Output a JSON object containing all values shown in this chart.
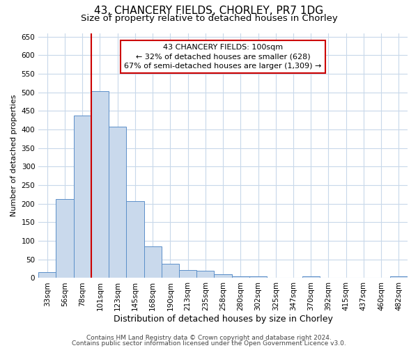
{
  "title1": "43, CHANCERY FIELDS, CHORLEY, PR7 1DG",
  "title2": "Size of property relative to detached houses in Chorley",
  "xlabel": "Distribution of detached houses by size in Chorley",
  "ylabel": "Number of detached properties",
  "footnote1": "Contains HM Land Registry data © Crown copyright and database right 2024.",
  "footnote2": "Contains public sector information licensed under the Open Government Licence v3.0.",
  "bar_labels": [
    "33sqm",
    "56sqm",
    "78sqm",
    "101sqm",
    "123sqm",
    "145sqm",
    "168sqm",
    "190sqm",
    "213sqm",
    "235sqm",
    "258sqm",
    "280sqm",
    "302sqm",
    "325sqm",
    "347sqm",
    "370sqm",
    "392sqm",
    "415sqm",
    "437sqm",
    "460sqm",
    "482sqm"
  ],
  "bar_values": [
    15,
    212,
    437,
    503,
    408,
    207,
    85,
    38,
    22,
    20,
    10,
    5,
    5,
    0,
    0,
    5,
    0,
    0,
    0,
    0,
    5
  ],
  "bar_color": "#c9d9ec",
  "bar_edge_color": "#5b8fc9",
  "vline_color": "#cc0000",
  "vline_index": 3,
  "annotation_line1": "43 CHANCERY FIELDS: 100sqm",
  "annotation_line2": "← 32% of detached houses are smaller (628)",
  "annotation_line3": "67% of semi-detached houses are larger (1,309) →",
  "annotation_box_color": "#ffffff",
  "annotation_box_edge": "#cc0000",
  "ylim": [
    0,
    660
  ],
  "yticks": [
    0,
    50,
    100,
    150,
    200,
    250,
    300,
    350,
    400,
    450,
    500,
    550,
    600,
    650
  ],
  "background_color": "#ffffff",
  "grid_color": "#c8d8ea",
  "title1_fontsize": 11,
  "title2_fontsize": 9.5,
  "ylabel_fontsize": 8,
  "xlabel_fontsize": 9,
  "tick_fontsize": 7.5,
  "annotation_fontsize": 8,
  "footnote_fontsize": 6.5
}
